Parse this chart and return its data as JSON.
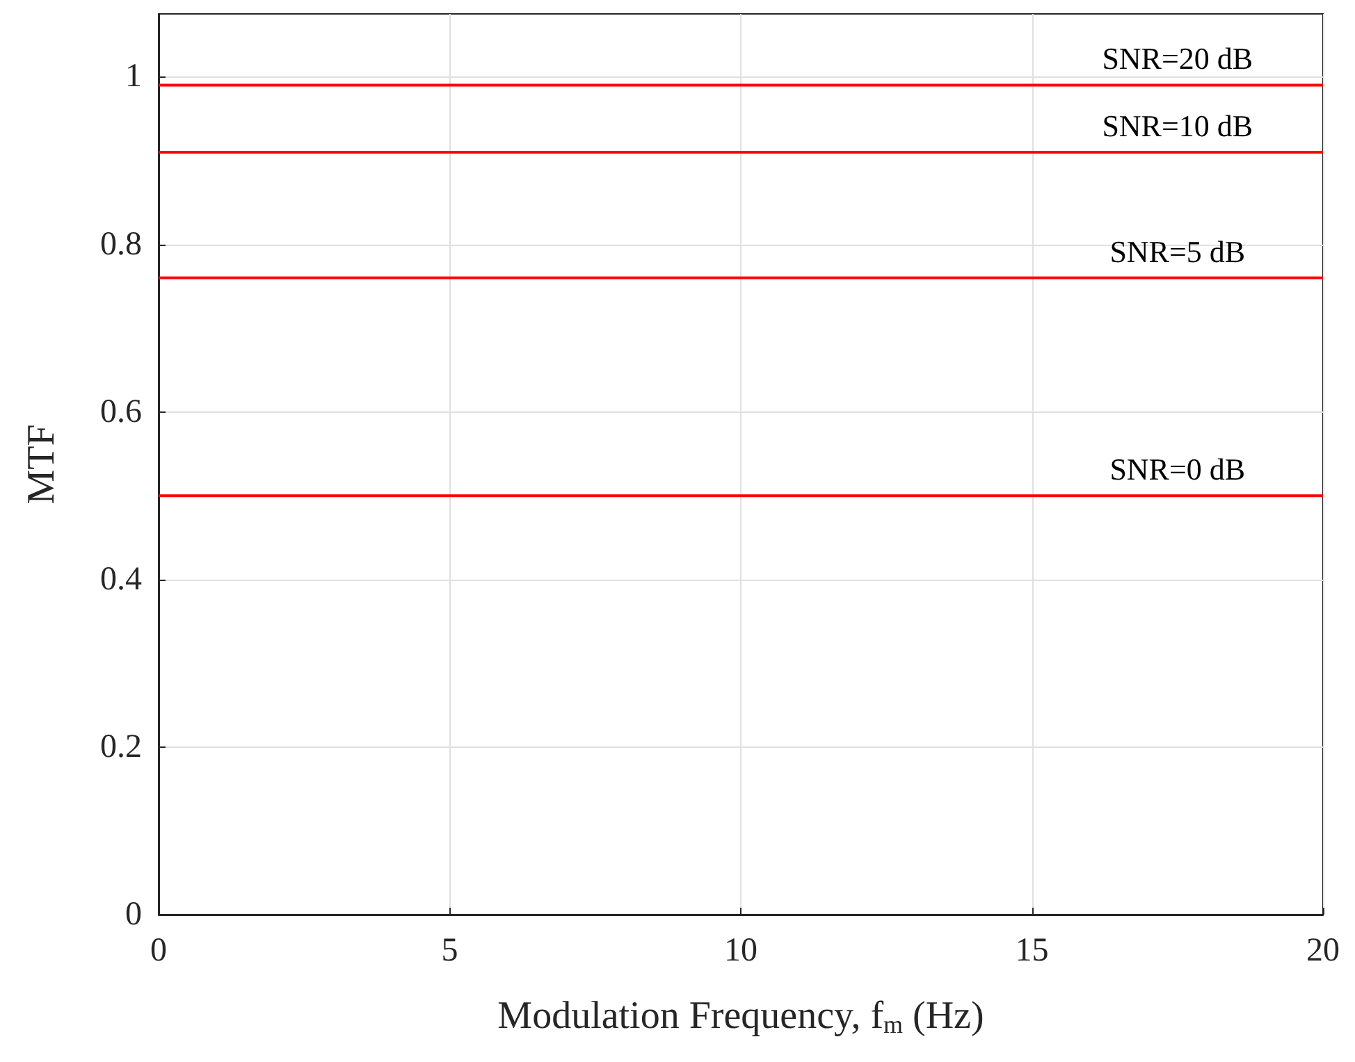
{
  "chart_data": {
    "type": "line",
    "xlabel": "Modulation Frequency, f$_{m}$ (Hz)",
    "ylabel": "MTF",
    "x": [
      0,
      20
    ],
    "series": [
      {
        "name": "SNR=20 dB",
        "color": "#ff0000",
        "values": [
          0.99,
          0.99
        ]
      },
      {
        "name": "SNR=10 dB",
        "color": "#ff0000",
        "values": [
          0.91,
          0.91
        ]
      },
      {
        "name": "SNR=5 dB",
        "color": "#ff0000",
        "values": [
          0.76,
          0.76
        ]
      },
      {
        "name": "SNR=0 dB",
        "color": "#ff0000",
        "values": [
          0.5,
          0.5
        ]
      }
    ],
    "xlim": [
      0,
      20
    ],
    "xticks": [
      0,
      5,
      10,
      15,
      20
    ],
    "ylim": [
      0,
      1.075
    ],
    "yticks": [
      0,
      0.2,
      0.4,
      0.6,
      0.8,
      1
    ],
    "grid": true,
    "marker": "none",
    "line_style": "solid"
  }
}
